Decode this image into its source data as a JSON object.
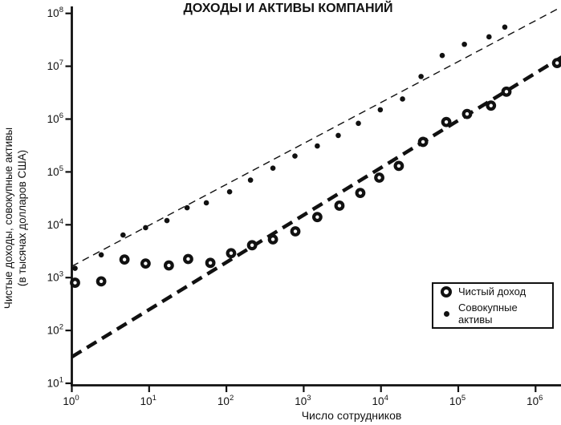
{
  "chart_data": {
    "type": "scatter",
    "title": "ДОХОДЫ И АКТИВЫ КОМПАНИЙ",
    "xlabel": "Число сотрудников",
    "ylabel_line1": "Чистые доходы, совокупные активы",
    "ylabel_line2": "(в тысячах долларов США)",
    "x_scale": "log",
    "y_scale": "log",
    "x_range": [
      1,
      2200000
    ],
    "y_range": [
      10,
      130000000
    ],
    "x_tick_exponents": [
      0,
      1,
      2,
      3,
      4,
      5,
      6
    ],
    "y_tick_exponents": [
      1,
      2,
      3,
      4,
      5,
      6,
      7,
      8
    ],
    "tick_base": "10",
    "grid": false,
    "legend_position": "lower-right",
    "foreground_color": "#111111",
    "background_color": "#ffffff",
    "series": [
      {
        "name": "Чистый доход",
        "marker": "open-circle",
        "points": [
          [
            1.1,
            800
          ],
          [
            2.4,
            850
          ],
          [
            4.8,
            2200
          ],
          [
            9,
            1850
          ],
          [
            18,
            1700
          ],
          [
            32,
            2250
          ],
          [
            62,
            1900
          ],
          [
            115,
            2900
          ],
          [
            215,
            4100
          ],
          [
            400,
            5300
          ],
          [
            780,
            7500
          ],
          [
            1500,
            14000
          ],
          [
            2900,
            23000
          ],
          [
            5400,
            40000
          ],
          [
            9500,
            78000
          ],
          [
            17000,
            130000
          ],
          [
            35000,
            370000
          ],
          [
            70000,
            880000
          ],
          [
            130000,
            1250000
          ],
          [
            265000,
            1800000
          ],
          [
            420000,
            3300000
          ],
          [
            1900000,
            11500000
          ]
        ],
        "trend_line": {
          "style": "dashed-thick",
          "x": [
            1,
            2200000
          ],
          "y": [
            31.6,
            15000000
          ]
        }
      },
      {
        "name": "Совокупные активы",
        "marker": "filled-dot",
        "points": [
          [
            1.1,
            1500
          ],
          [
            2.4,
            2700
          ],
          [
            4.6,
            6400
          ],
          [
            9,
            8800
          ],
          [
            17,
            12000
          ],
          [
            31,
            21000
          ],
          [
            55,
            26000
          ],
          [
            110,
            42000
          ],
          [
            205,
            70000
          ],
          [
            400,
            118000
          ],
          [
            770,
            200000
          ],
          [
            1500,
            310000
          ],
          [
            2800,
            490000
          ],
          [
            5100,
            830000
          ],
          [
            9800,
            1500000
          ],
          [
            19000,
            2400000
          ],
          [
            33000,
            6400000
          ],
          [
            62000,
            16000000
          ],
          [
            120000,
            26000000
          ],
          [
            250000,
            36000000
          ],
          [
            400000,
            55000000
          ]
        ],
        "trend_line": {
          "style": "dashed-thin",
          "x": [
            1,
            1900000
          ],
          "y": [
            1640,
            120000000
          ]
        }
      }
    ]
  },
  "legend": {
    "item1": "Чистый доход",
    "item2": "Совокупные активы"
  }
}
